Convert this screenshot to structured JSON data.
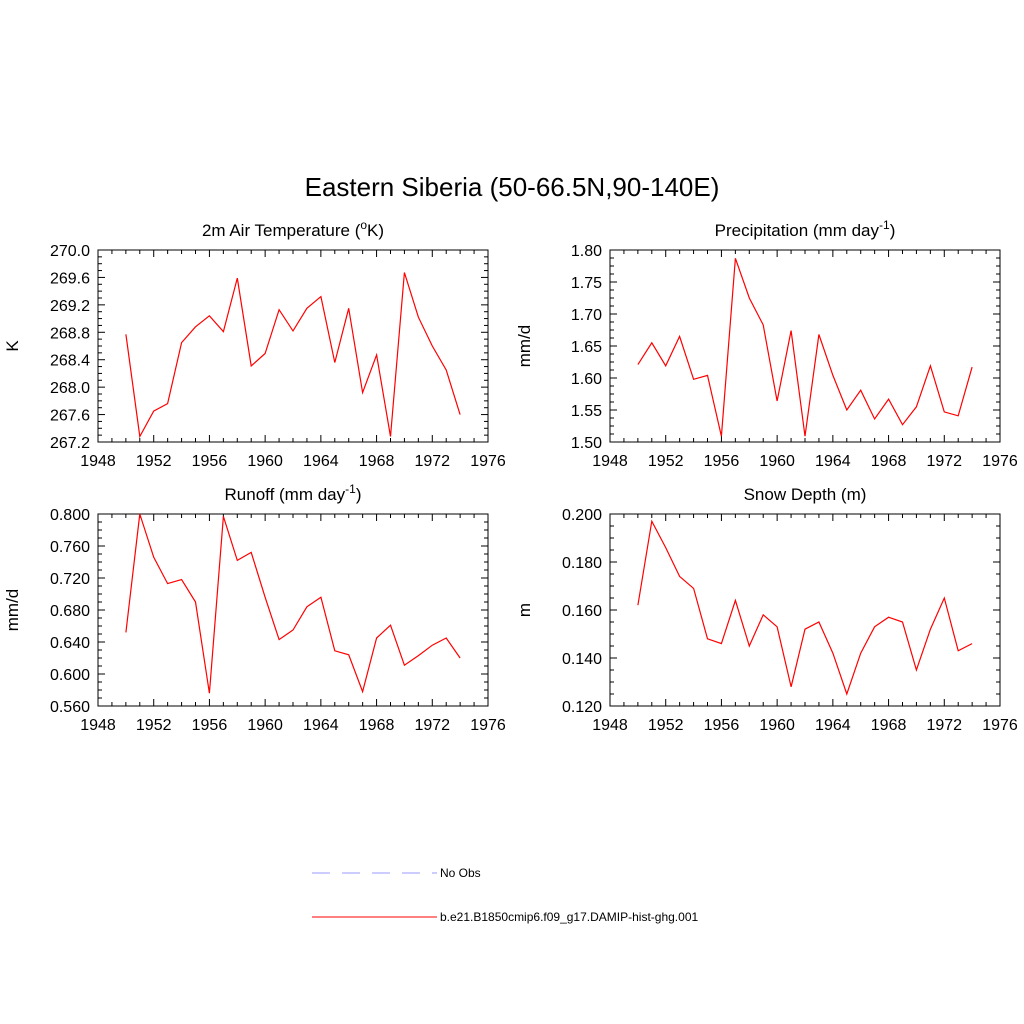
{
  "figure_title": "Eastern Siberia (50-66.5N,90-140E)",
  "colors": {
    "model_line": "#ff0000",
    "obs_line": "#9999ff",
    "axes": "#000000"
  },
  "legend": {
    "items": [
      {
        "label": "No Obs",
        "style": "dashed",
        "color": "#9999ff"
      },
      {
        "label": "b.e21.B1850cmip6.f09_g17.DAMIP-hist-ghg.001",
        "style": "solid",
        "color": "#ff0000"
      }
    ]
  },
  "chart_data": [
    {
      "type": "line",
      "title": "2m Air Temperature (",
      "title_sup": "o",
      "title_suffix": "K)",
      "ylabel": "K",
      "xlim": [
        1948,
        1976
      ],
      "ylim": [
        267.2,
        270.0
      ],
      "x_ticks": [
        "1948",
        "1952",
        "1956",
        "1960",
        "1964",
        "1968",
        "1972",
        "1976"
      ],
      "y_ticks": [
        "267.2",
        "267.6",
        "268.0",
        "268.4",
        "268.8",
        "269.2",
        "269.6",
        "270.0"
      ],
      "x": [
        1950,
        1951,
        1952,
        1953,
        1954,
        1955,
        1956,
        1957,
        1958,
        1959,
        1960,
        1961,
        1962,
        1963,
        1964,
        1965,
        1966,
        1967,
        1968,
        1969,
        1970,
        1971,
        1972,
        1973,
        1974
      ],
      "series": [
        {
          "values": [
            268.77,
            267.28,
            267.65,
            267.76,
            268.65,
            268.88,
            269.04,
            268.81,
            269.59,
            268.31,
            268.49,
            269.13,
            268.82,
            269.15,
            269.32,
            268.36,
            269.15,
            267.92,
            268.47,
            267.28,
            269.67,
            269.02,
            268.6,
            268.25,
            267.6
          ]
        }
      ]
    },
    {
      "type": "line",
      "title": "Precipitation (mm day",
      "title_sup": "-1",
      "title_suffix": ")",
      "ylabel": "mm/d",
      "xlim": [
        1948,
        1976
      ],
      "ylim": [
        1.5,
        1.8
      ],
      "x_ticks": [
        "1948",
        "1952",
        "1956",
        "1960",
        "1964",
        "1968",
        "1972",
        "1976"
      ],
      "y_ticks": [
        "1.50",
        "1.55",
        "1.60",
        "1.65",
        "1.70",
        "1.75",
        "1.80"
      ],
      "x": [
        1950,
        1951,
        1952,
        1953,
        1954,
        1955,
        1956,
        1957,
        1958,
        1959,
        1960,
        1961,
        1962,
        1963,
        1964,
        1965,
        1966,
        1967,
        1968,
        1969,
        1970,
        1971,
        1972,
        1973,
        1974
      ],
      "series": [
        {
          "values": [
            1.621,
            1.655,
            1.619,
            1.665,
            1.598,
            1.604,
            1.509,
            1.787,
            1.725,
            1.683,
            1.564,
            1.674,
            1.509,
            1.668,
            1.604,
            1.55,
            1.581,
            1.536,
            1.567,
            1.527,
            1.555,
            1.619,
            1.547,
            1.541,
            1.617
          ]
        }
      ]
    },
    {
      "type": "line",
      "title": "Runoff (mm day",
      "title_sup": "-1",
      "title_suffix": ")",
      "ylabel": "mm/d",
      "xlim": [
        1948,
        1976
      ],
      "ylim": [
        0.56,
        0.8
      ],
      "x_ticks": [
        "1948",
        "1952",
        "1956",
        "1960",
        "1964",
        "1968",
        "1972",
        "1976"
      ],
      "y_ticks": [
        "0.560",
        "0.600",
        "0.640",
        "0.680",
        "0.720",
        "0.760",
        "0.800"
      ],
      "x": [
        1950,
        1951,
        1952,
        1953,
        1954,
        1955,
        1956,
        1957,
        1958,
        1959,
        1960,
        1961,
        1962,
        1963,
        1964,
        1965,
        1966,
        1967,
        1968,
        1969,
        1970,
        1971,
        1972,
        1973,
        1974
      ],
      "series": [
        {
          "values": [
            0.652,
            0.8,
            0.746,
            0.713,
            0.718,
            0.69,
            0.576,
            0.797,
            0.742,
            0.752,
            0.696,
            0.643,
            0.655,
            0.684,
            0.696,
            0.629,
            0.624,
            0.578,
            0.645,
            0.661,
            0.611,
            0.623,
            0.636,
            0.645,
            0.62
          ]
        }
      ]
    },
    {
      "type": "line",
      "title": "Snow Depth (m)",
      "title_sup": "",
      "title_suffix": "",
      "ylabel": "m",
      "xlim": [
        1948,
        1976
      ],
      "ylim": [
        0.12,
        0.2
      ],
      "x_ticks": [
        "1948",
        "1952",
        "1956",
        "1960",
        "1964",
        "1968",
        "1972",
        "1976"
      ],
      "y_ticks": [
        "0.120",
        "0.140",
        "0.160",
        "0.180",
        "0.200"
      ],
      "x": [
        1950,
        1951,
        1952,
        1953,
        1954,
        1955,
        1956,
        1957,
        1958,
        1959,
        1960,
        1961,
        1962,
        1963,
        1964,
        1965,
        1966,
        1967,
        1968,
        1969,
        1970,
        1971,
        1972,
        1973,
        1974
      ],
      "series": [
        {
          "values": [
            0.162,
            0.197,
            0.186,
            0.174,
            0.169,
            0.148,
            0.146,
            0.164,
            0.145,
            0.158,
            0.153,
            0.128,
            0.152,
            0.155,
            0.142,
            0.125,
            0.142,
            0.153,
            0.157,
            0.155,
            0.135,
            0.152,
            0.165,
            0.143,
            0.146
          ]
        }
      ]
    }
  ]
}
